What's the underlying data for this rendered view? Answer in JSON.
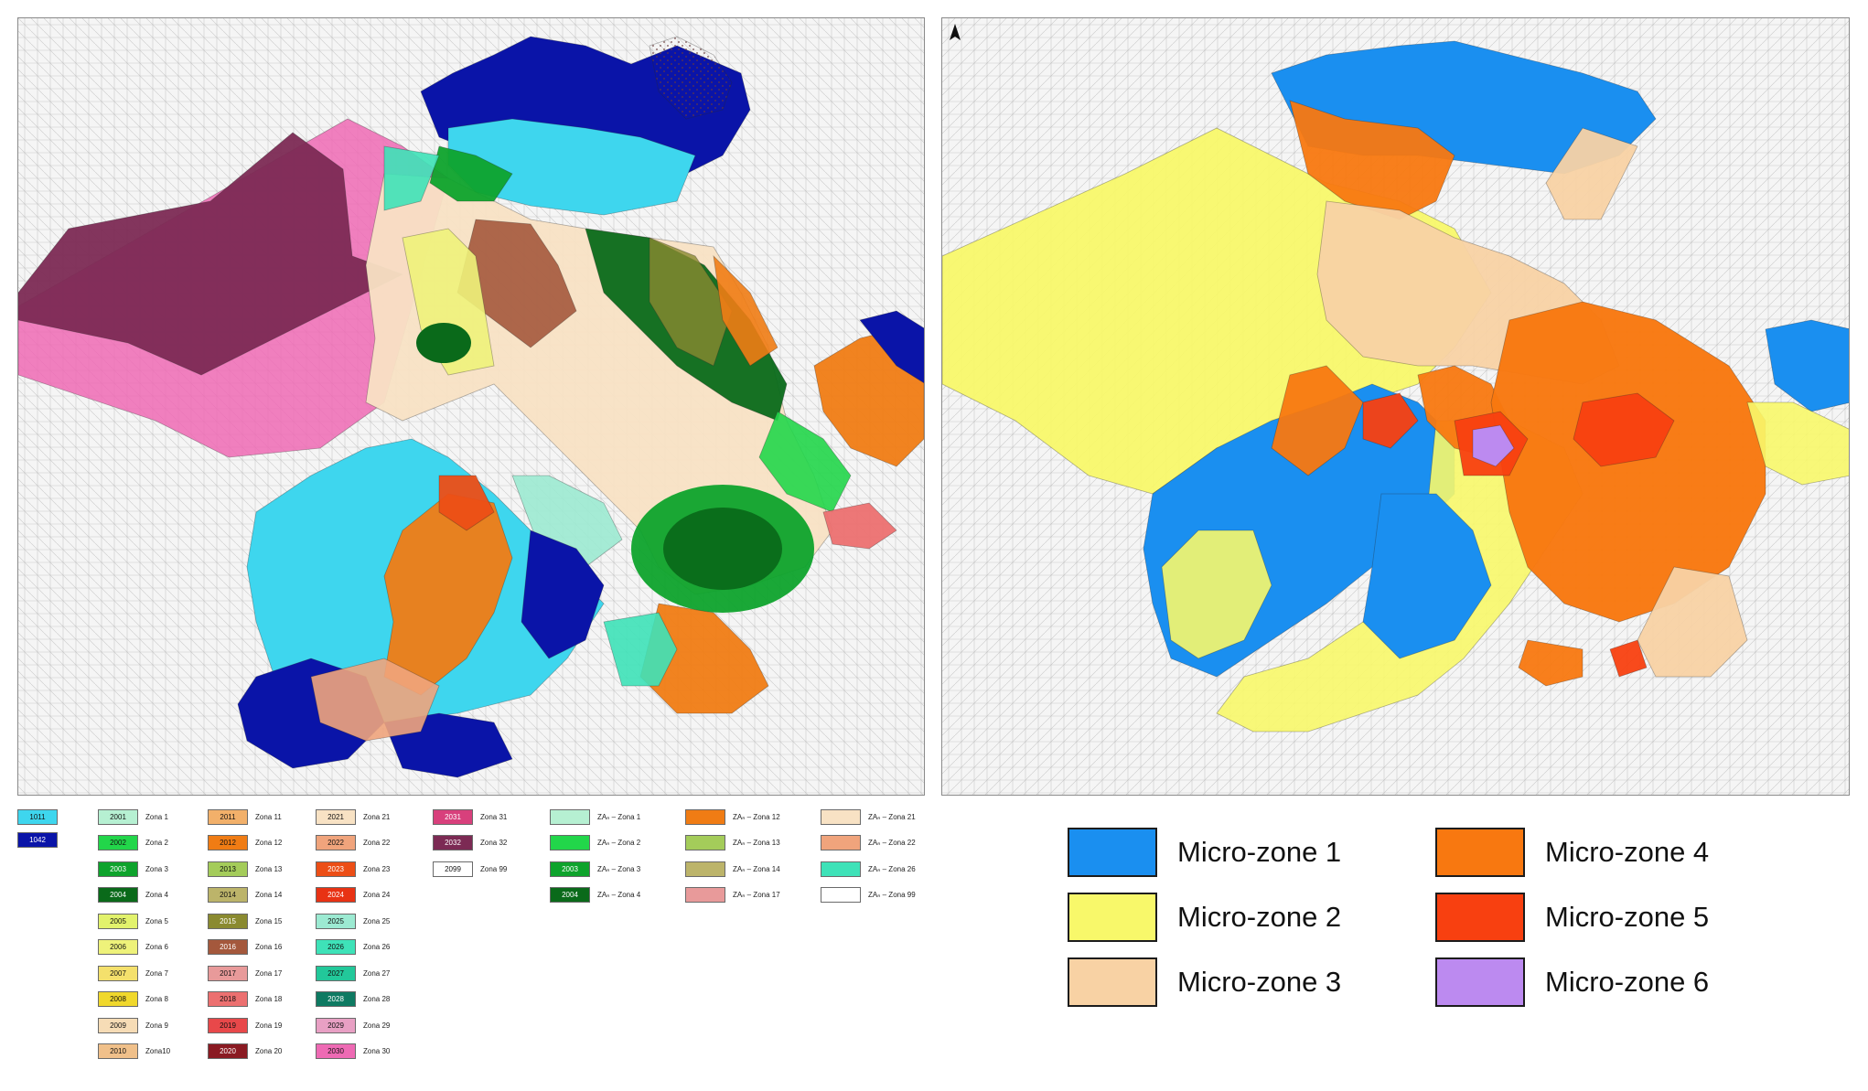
{
  "map_left": {
    "zone_colors": {
      "1011": "#3ed6ee",
      "1042": "#0a14a8",
      "2001": "#b6f0d2",
      "2002": "#22d64a",
      "2003": "#0ea32c",
      "2004": "#0a6a1a",
      "2005": "#e2f26c",
      "2006": "#eef27a",
      "2007": "#f4e06c",
      "2008": "#f0d82c",
      "2009": "#f6dcb6",
      "2010": "#f0c08a",
      "2011": "#f2b06a",
      "2012": "#f07c14",
      "2013": "#a4cc5a",
      "2014": "#bcb46a",
      "2015": "#8a8a30",
      "2016": "#a4583c",
      "2017": "#e89a9a",
      "2018": "#ec7070",
      "2019": "#e8484a",
      "2020": "#8a1a22",
      "2021": "#f8e2c4",
      "2022": "#f0a47c",
      "2023": "#ec4e16",
      "2024": "#e83214",
      "2025": "#9cead2",
      "2026": "#3ee2b8",
      "2027": "#22c89a",
      "2028": "#0e7a62",
      "2029": "#e8a0c4",
      "2030": "#ee6ab4",
      "2031": "#d8407c",
      "2032": "#7c2a54",
      "2099": "#ffffff"
    }
  },
  "legend_left": {
    "column1": [
      {
        "code": "1011",
        "color": "#3ed6ee"
      },
      {
        "code": "1042",
        "color": "#0a14a8"
      }
    ],
    "items": [
      {
        "code": "2001",
        "label": "Zona 1",
        "color": "#b6f0d2"
      },
      {
        "code": "2002",
        "label": "Zona 2",
        "color": "#22d64a"
      },
      {
        "code": "2003",
        "label": "Zona 3",
        "color": "#0ea32c"
      },
      {
        "code": "2004",
        "label": "Zona 4",
        "color": "#0a6a1a"
      },
      {
        "code": "2005",
        "label": "Zona 5",
        "color": "#e2f26c"
      },
      {
        "code": "2006",
        "label": "Zona 6",
        "color": "#eef27a"
      },
      {
        "code": "2007",
        "label": "Zona 7",
        "color": "#f4e06c"
      },
      {
        "code": "2008",
        "label": "Zona 8",
        "color": "#f0d82c"
      },
      {
        "code": "2009",
        "label": "Zona 9",
        "color": "#f6dcb6"
      },
      {
        "code": "2010",
        "label": "Zona10",
        "color": "#f0c08a"
      },
      {
        "code": "2011",
        "label": "Zona 11",
        "color": "#f2b06a"
      },
      {
        "code": "2012",
        "label": "Zona 12",
        "color": "#f07c14"
      },
      {
        "code": "2013",
        "label": "Zona 13",
        "color": "#a4cc5a"
      },
      {
        "code": "2014",
        "label": "Zona 14",
        "color": "#bcb46a"
      },
      {
        "code": "2015",
        "label": "Zona 15",
        "color": "#8a8a30"
      },
      {
        "code": "2016",
        "label": "Zona 16",
        "color": "#a4583c"
      },
      {
        "code": "2017",
        "label": "Zona 17",
        "color": "#e89a9a"
      },
      {
        "code": "2018",
        "label": "Zona 18",
        "color": "#ec7070"
      },
      {
        "code": "2019",
        "label": "Zona 19",
        "color": "#e8484a"
      },
      {
        "code": "2020",
        "label": "Zona 20",
        "color": "#8a1a22"
      },
      {
        "code": "2021",
        "label": "Zona 21",
        "color": "#f8e2c4"
      },
      {
        "code": "2022",
        "label": "Zona 22",
        "color": "#f0a47c"
      },
      {
        "code": "2023",
        "label": "Zona 23",
        "color": "#ec4e16"
      },
      {
        "code": "2024",
        "label": "Zona 24",
        "color": "#e83214"
      },
      {
        "code": "2025",
        "label": "Zona 25",
        "color": "#9cead2"
      },
      {
        "code": "2026",
        "label": "Zona 26",
        "color": "#3ee2b8"
      },
      {
        "code": "2027",
        "label": "Zona 27",
        "color": "#22c89a"
      },
      {
        "code": "2028",
        "label": "Zona 28",
        "color": "#0e7a62"
      },
      {
        "code": "2029",
        "label": "Zona 29",
        "color": "#e8a0c4"
      },
      {
        "code": "2030",
        "label": "Zona 30",
        "color": "#ee6ab4"
      },
      {
        "code": "2031",
        "label": "Zona 31",
        "color": "#d8407c"
      },
      {
        "code": "2032",
        "label": "Zona 32",
        "color": "#7c2a54"
      },
      {
        "code": "2099",
        "label": "Zona 99",
        "color": "#ffffff"
      },
      {
        "code": "",
        "label": "ZAₙ – Zona 1",
        "color": "#b6f0d2"
      },
      {
        "code": "",
        "label": "ZAₙ – Zona 2",
        "color": "#22d64a"
      },
      {
        "code": "2003",
        "label": "ZAₙ – Zona 3",
        "color": "#0ea32c"
      },
      {
        "code": "2004",
        "label": "ZAₙ – Zona 4",
        "color": "#0a6a1a"
      },
      {
        "code": "",
        "label": "ZAₙ – Zona 12",
        "color": "#f07c14"
      },
      {
        "code": "",
        "label": "ZAₙ – Zona 13",
        "color": "#a4cc5a"
      },
      {
        "code": "",
        "label": "ZAₙ – Zona 14",
        "color": "#bcb46a"
      },
      {
        "code": "",
        "label": "ZAₙ – Zona 17",
        "color": "#e89a9a"
      },
      {
        "code": "",
        "label": "ZAₙ – Zona 21",
        "color": "#f8e2c4"
      },
      {
        "code": "",
        "label": "ZAₙ – Zona 22",
        "color": "#f0a47c"
      },
      {
        "code": "",
        "label": "ZAₙ – Zona 26",
        "color": "#3ee2b8"
      },
      {
        "code": "",
        "label": "ZAₙ – Zona 99",
        "color": "#ffffff"
      }
    ]
  },
  "legend_right": {
    "items": [
      {
        "label": "Micro-zone 1",
        "color": "#1a8ff0"
      },
      {
        "label": "Micro-zone 2",
        "color": "#f8f86a"
      },
      {
        "label": "Micro-zone 3",
        "color": "#f8d2a4"
      },
      {
        "label": "Micro-zone 4",
        "color": "#f87810"
      },
      {
        "label": "Micro-zone 5",
        "color": "#f84010"
      },
      {
        "label": "Micro-zone 6",
        "color": "#bc8af0"
      }
    ]
  }
}
